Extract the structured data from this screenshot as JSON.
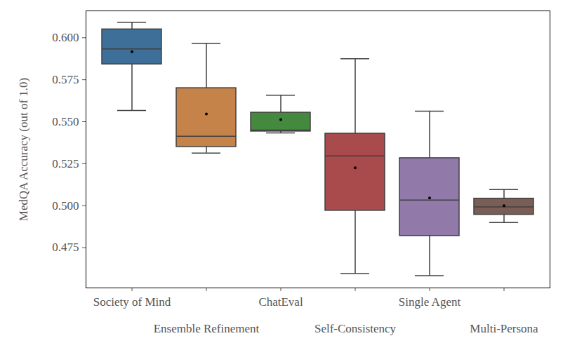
{
  "chart_data": {
    "type": "box",
    "ylabel": "MedQA Accuracy (out of 1.0)",
    "categories": [
      "Society of Mind",
      "Ensemble Refinement",
      "ChatEval",
      "Self-Consistency",
      "Single Agent",
      "Multi-Persona"
    ],
    "colors": [
      "#3d6f99",
      "#c5834a",
      "#45893f",
      "#a94a4d",
      "#9179aa",
      "#7a5e55"
    ],
    "whisker_low": [
      0.5567,
      0.5313,
      0.5433,
      0.4596,
      0.4583,
      0.49
    ],
    "q1": [
      0.5842,
      0.535,
      0.5442,
      0.497,
      0.482,
      0.4946
    ],
    "median": [
      0.5933,
      0.5413,
      0.545,
      0.5296,
      0.5033,
      0.4992
    ],
    "q3": [
      0.605,
      0.57,
      0.5554,
      0.5429,
      0.5283,
      0.5042
    ],
    "whisker_high": [
      0.6092,
      0.5967,
      0.5658,
      0.5875,
      0.5563,
      0.5096
    ],
    "mean": [
      0.5917,
      0.5546,
      0.5513,
      0.5225,
      0.5046,
      0.5
    ],
    "ylim": [
      0.451,
      0.616
    ],
    "yticks": [
      0.475,
      {
        "value": 0.5,
        "label": "0.500"
      },
      0.525,
      {
        "value": 0.55,
        "label": "0.550"
      },
      0.575,
      {
        "value": 0.6,
        "label": "0.600"
      }
    ],
    "grid": false
  }
}
